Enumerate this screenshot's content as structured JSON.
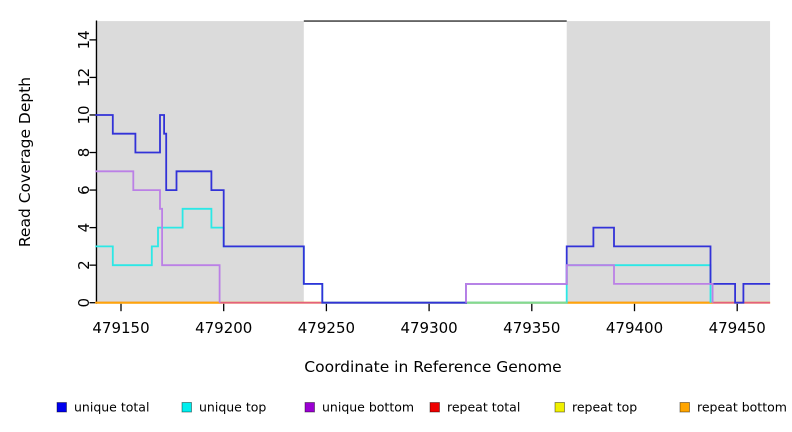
{
  "chart_data": {
    "type": "line",
    "subtype": "step-coverage-plot",
    "title": "",
    "xlabel": "Coordinate in Reference Genome",
    "ylabel": "Read Coverage Depth",
    "xlim": [
      479137.5,
      479466
    ],
    "ylim": [
      0,
      15
    ],
    "x_ticks": [
      479150,
      479200,
      479250,
      479300,
      479350,
      479400,
      479450
    ],
    "y_ticks": [
      0,
      2,
      4,
      6,
      8,
      10,
      12,
      14
    ],
    "grid": "off",
    "legend_position": "bottom",
    "shaded_regions": [
      {
        "x1": 479137.5,
        "x2": 479239,
        "color": "#dbdbdb",
        "meaning": "repeat region"
      },
      {
        "x1": 479367,
        "x2": 479466,
        "color": "#dbdbdb",
        "meaning": "repeat region"
      }
    ],
    "gap_top_border": {
      "x1": 479239,
      "x2": 479367,
      "y": 15,
      "color": "#4f4f4f"
    },
    "axis_color": "#000000",
    "series": [
      {
        "id": "repeat_top",
        "name": "repeat top",
        "color": "#f2f200",
        "legend_color": "#f0f000",
        "segments": [
          {
            "steps": [
              [
                479137.5,
                0
              ]
            ],
            "xend": 479466
          }
        ]
      },
      {
        "id": "repeat_total",
        "name": "repeat total",
        "color": "#e4607e",
        "legend_color": "#ee0000",
        "segments": [
          {
            "steps": [
              [
                479137.5,
                0
              ]
            ],
            "xend": 479466
          }
        ]
      },
      {
        "id": "repeat_bottom",
        "name": "repeat bottom",
        "color": "#ffa408",
        "legend_color": "#ffa500",
        "segments": [
          {
            "steps": [
              [
                479137.5,
                0
              ]
            ],
            "xend": 479198
          },
          {
            "steps": [
              [
                479367,
                0
              ]
            ],
            "xend": 479438
          }
        ]
      },
      {
        "id": "unique_top",
        "name": "unique top",
        "color": "#2be8e6",
        "legend_color": "#00eeee",
        "segments": [
          {
            "steps": [
              [
                479137.5,
                3
              ],
              [
                479146,
                2
              ],
              [
                479165,
                3
              ],
              [
                479168,
                4
              ],
              [
                479180,
                5
              ],
              [
                479194,
                4
              ],
              [
                479200,
                3
              ],
              [
                479239,
                1
              ],
              [
                479248,
                0
              ],
              [
                479367,
                2
              ],
              [
                479437,
                0
              ]
            ],
            "xend": 479437
          }
        ]
      },
      {
        "id": "overlap_top_blend",
        "name": "unique top + repeat top overlap",
        "is_blend": true,
        "color": "#83db8e",
        "legend_color": null,
        "segments": [
          {
            "steps": [
              [
                479318,
                0
              ]
            ],
            "xend": 479367
          }
        ]
      },
      {
        "id": "unique_total",
        "name": "unique total",
        "color": "#3232d8",
        "legend_color": "#0000ee",
        "segments": [
          {
            "steps": [
              [
                479137.5,
                10
              ],
              [
                479146,
                9
              ],
              [
                479157,
                8
              ],
              [
                479169,
                10
              ],
              [
                479171,
                9
              ],
              [
                479172,
                6
              ],
              [
                479177,
                7
              ],
              [
                479194,
                6
              ],
              [
                479200,
                3
              ],
              [
                479239,
                1
              ],
              [
                479248,
                0
              ],
              [
                479318,
                1
              ],
              [
                479367,
                3
              ],
              [
                479380,
                4
              ],
              [
                479390,
                3
              ],
              [
                479437,
                1
              ],
              [
                479449,
                0
              ],
              [
                479453,
                1
              ]
            ],
            "xend": 479466
          }
        ]
      },
      {
        "id": "unique_bottom",
        "name": "unique bottom",
        "color": "#bb80e6",
        "legend_color": "#9b00d3",
        "segments": [
          {
            "steps": [
              [
                479137.5,
                7
              ],
              [
                479156,
                6
              ],
              [
                479169,
                5
              ],
              [
                479170,
                2
              ],
              [
                479198,
                0
              ]
            ],
            "xend": 479198
          },
          {
            "steps": [
              [
                479318,
                0
              ],
              [
                479318,
                1
              ],
              [
                479367,
                2
              ],
              [
                479390,
                1
              ],
              [
                479438,
                0
              ]
            ],
            "xend": 479438
          }
        ]
      }
    ],
    "draw_order": [
      "repeat_top",
      "repeat_total",
      "repeat_bottom",
      "unique_top",
      "overlap_top_blend",
      "unique_total",
      "unique_bottom"
    ],
    "legend": [
      {
        "label": "unique total",
        "color": "#0000ee"
      },
      {
        "label": "unique top",
        "color": "#00eeee"
      },
      {
        "label": "unique bottom",
        "color": "#9b00d3"
      },
      {
        "label": "repeat total",
        "color": "#ee0000"
      },
      {
        "label": "repeat top",
        "color": "#f0f000"
      },
      {
        "label": "repeat bottom",
        "color": "#ffa500"
      }
    ]
  }
}
